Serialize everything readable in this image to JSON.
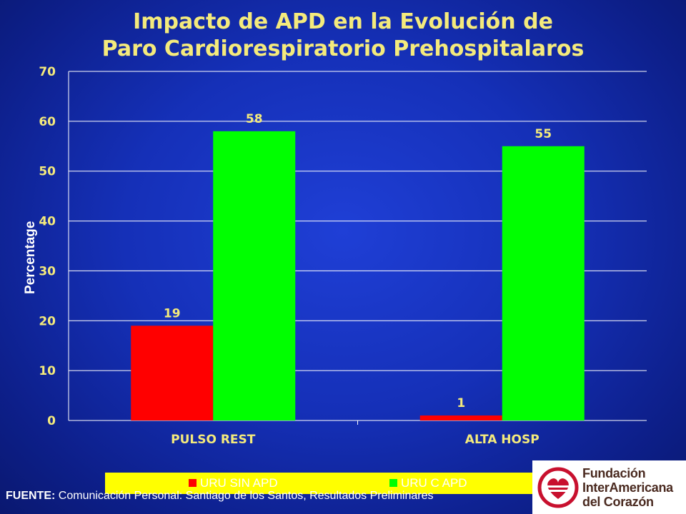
{
  "chart_data": {
    "type": "bar",
    "title": [
      "Impacto de APD en la Evolución de",
      "Paro Cardiorespiratorio Prehospitalaros"
    ],
    "categories": [
      "PULSO REST",
      "ALTA HOSP"
    ],
    "series": [
      {
        "name": "URU SIN APD",
        "values": [
          19,
          1
        ],
        "color": "#ff0000"
      },
      {
        "name": "URU C APD",
        "values": [
          58,
          55
        ],
        "color": "#00ff00"
      }
    ],
    "ylabel": "Percentage",
    "ylim": [
      0,
      70
    ],
    "yticks": [
      0,
      10,
      20,
      30,
      40,
      50,
      60,
      70
    ],
    "grid": true,
    "legend_position": "bottom"
  },
  "source": {
    "prefix": "FUENTE:",
    "text": "Comunicación Personal: Santiago de los Santos, Resultados Preliminares"
  },
  "logo": {
    "lines": [
      "Fundación",
      "InterAmericana",
      "del Corazón"
    ]
  },
  "colors": {
    "title": "#f4ea7c",
    "data_label": "#f4ea7c",
    "axis_text": "#f4ea7c",
    "legend_bg": "#ffff00"
  }
}
